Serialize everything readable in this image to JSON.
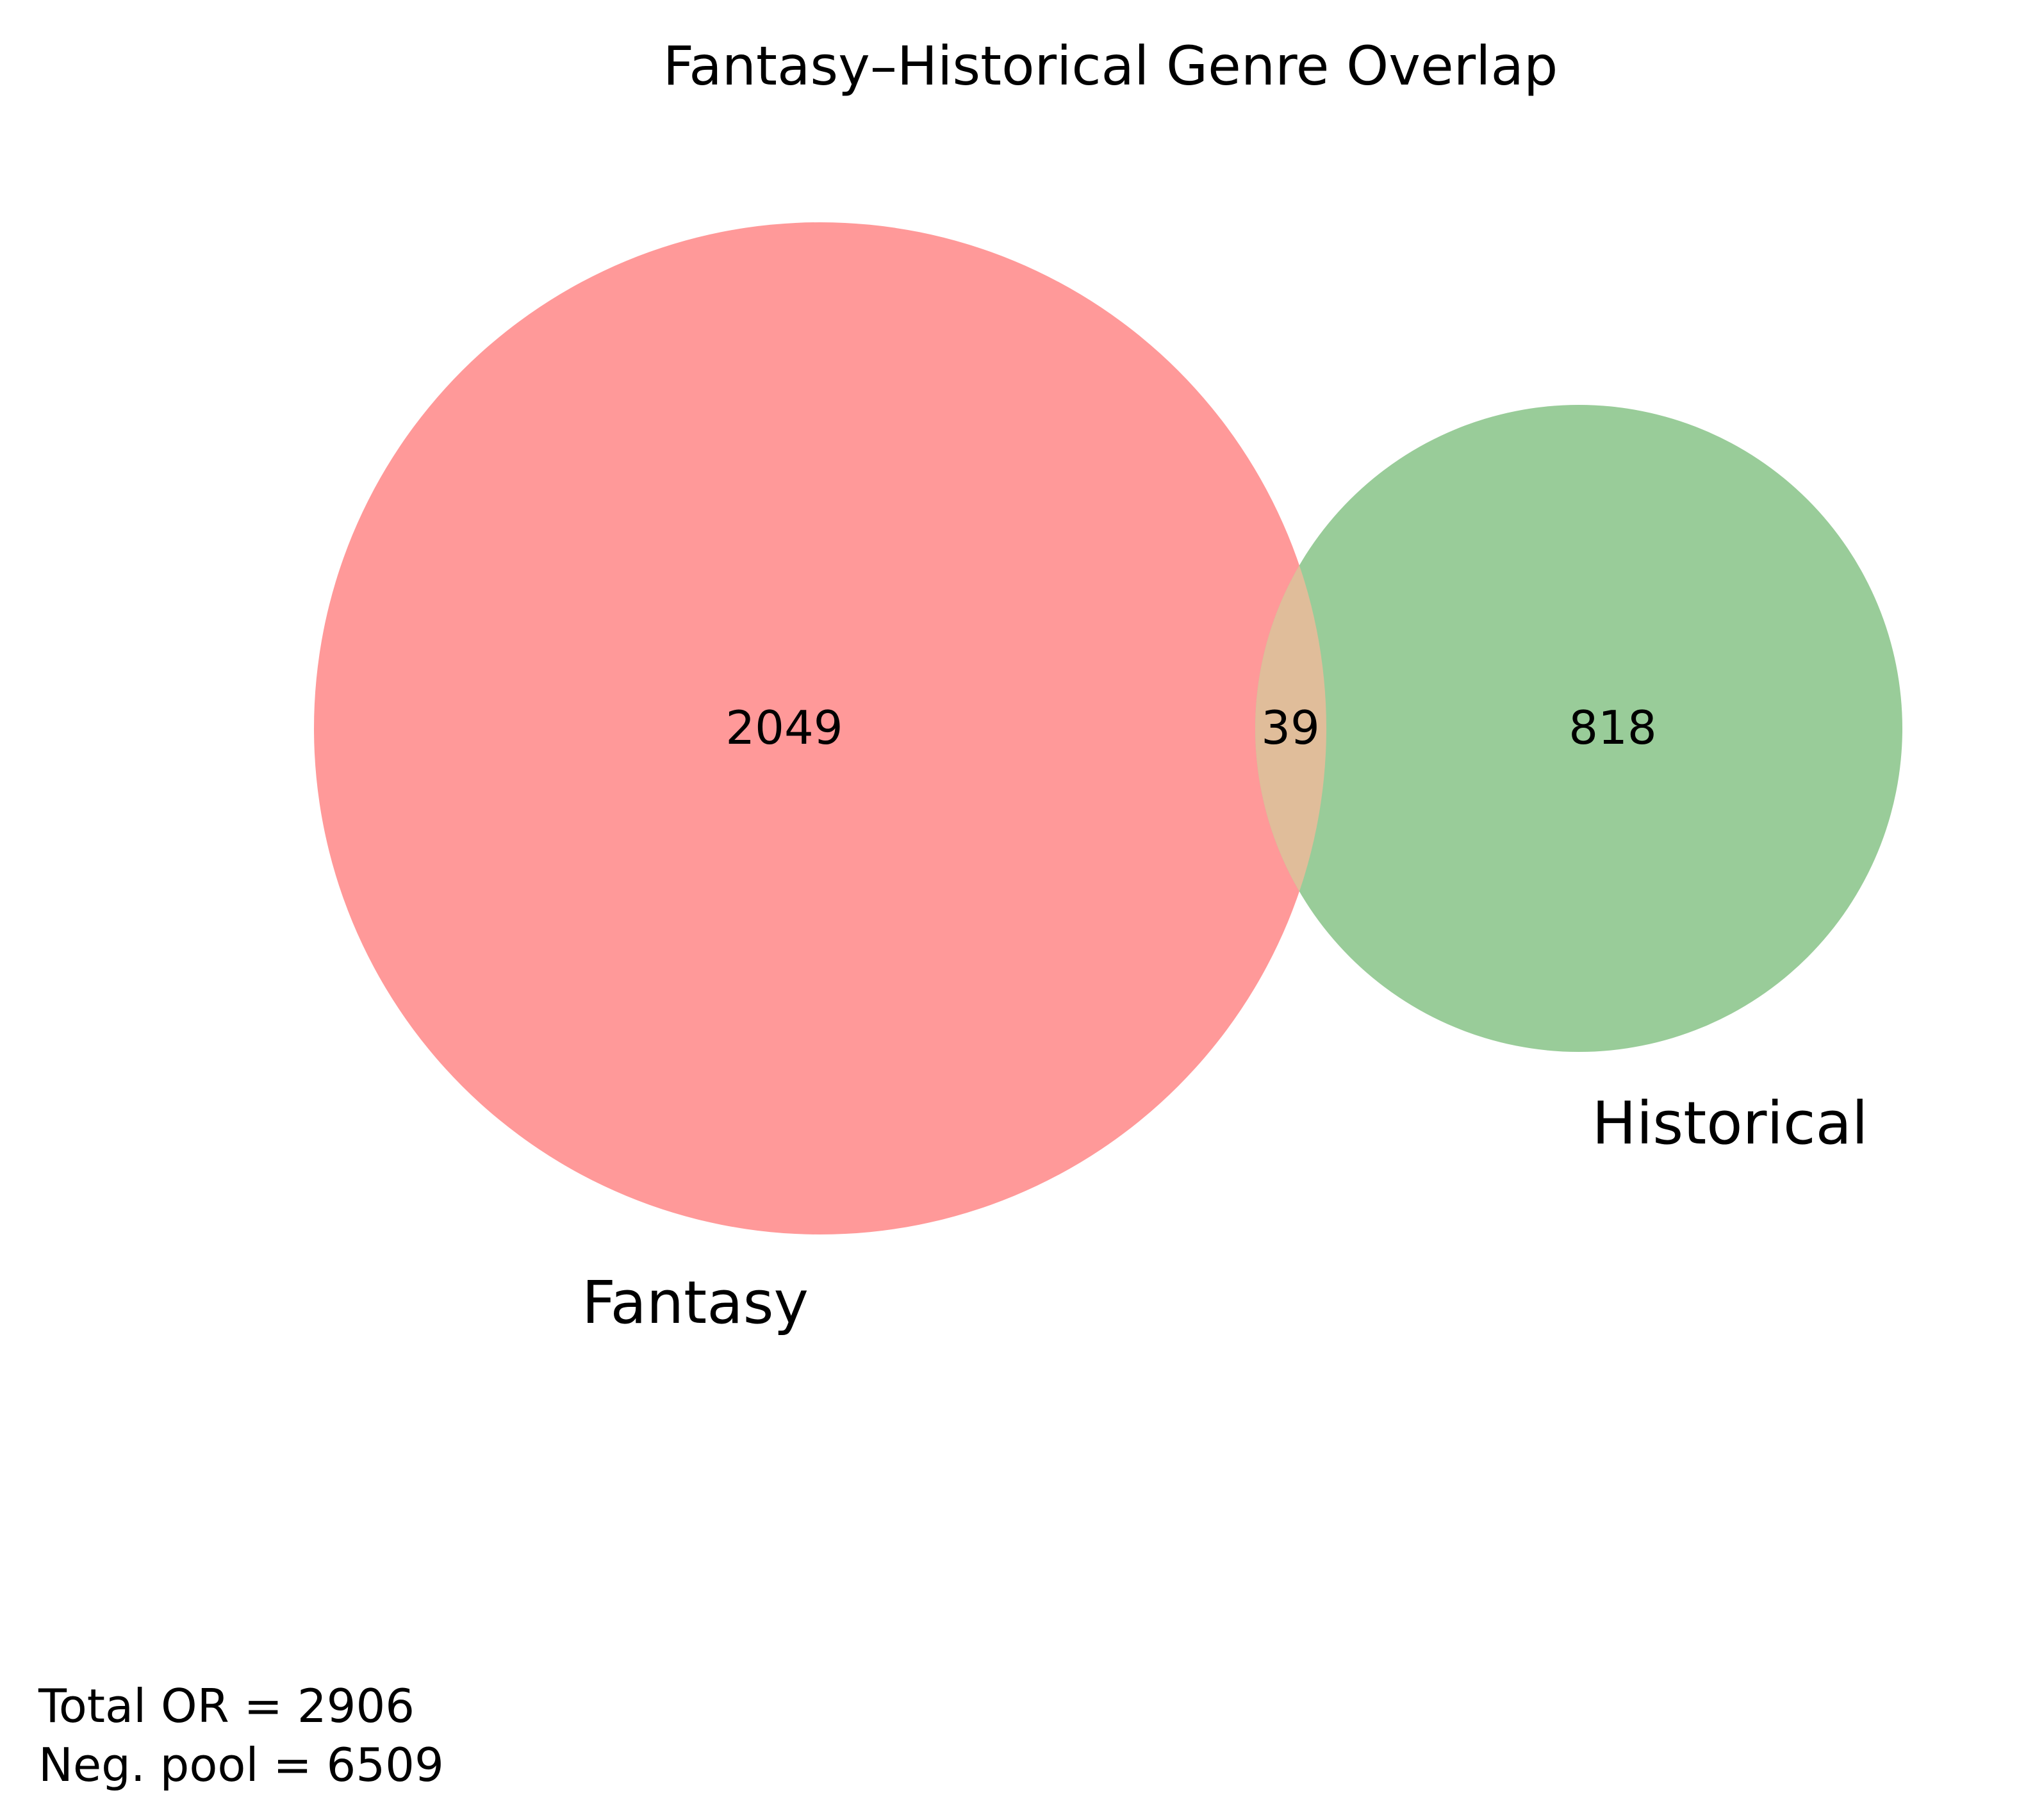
{
  "title": "Fantasy–Historical Genre Overlap",
  "sets": [
    {
      "name": "Fantasy",
      "only_count": "2049",
      "color": "#ff9999"
    },
    {
      "name": "Historical",
      "only_count": "818",
      "color": "#99cc99"
    }
  ],
  "intersection": {
    "count": "39",
    "color": "#e0bd9a"
  },
  "footnote": {
    "total_or": "Total OR = 2906",
    "neg_pool": "Neg. pool = 6509"
  }
}
